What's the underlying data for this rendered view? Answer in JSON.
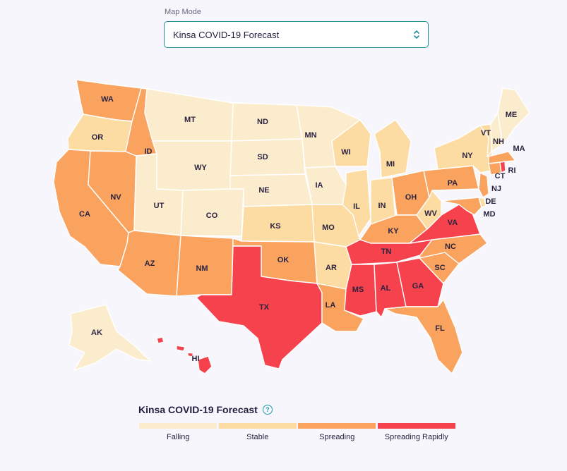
{
  "map_mode": {
    "label": "Map Mode",
    "selected": "Kinsa COVID-19 Forecast"
  },
  "legend": {
    "title": "Kinsa COVID-19 Forecast",
    "help_icon": "question-circle-icon",
    "categories": [
      {
        "key": "falling",
        "label": "Falling",
        "color": "#fcecce"
      },
      {
        "key": "stable",
        "label": "Stable",
        "color": "#fddca4"
      },
      {
        "key": "spreading",
        "label": "Spreading",
        "color": "#f9a35f"
      },
      {
        "key": "spreading_rapidly",
        "label": "Spreading Rapidly",
        "color": "#f5424d"
      }
    ]
  },
  "states": [
    {
      "abbr": "WA",
      "status": "spreading"
    },
    {
      "abbr": "OR",
      "status": "stable"
    },
    {
      "abbr": "CA",
      "status": "spreading"
    },
    {
      "abbr": "NV",
      "status": "spreading"
    },
    {
      "abbr": "ID",
      "status": "spreading"
    },
    {
      "abbr": "MT",
      "status": "falling"
    },
    {
      "abbr": "WY",
      "status": "falling"
    },
    {
      "abbr": "UT",
      "status": "falling"
    },
    {
      "abbr": "CO",
      "status": "falling"
    },
    {
      "abbr": "AZ",
      "status": "spreading"
    },
    {
      "abbr": "NM",
      "status": "spreading"
    },
    {
      "abbr": "ND",
      "status": "falling"
    },
    {
      "abbr": "SD",
      "status": "falling"
    },
    {
      "abbr": "NE",
      "status": "falling"
    },
    {
      "abbr": "KS",
      "status": "stable"
    },
    {
      "abbr": "OK",
      "status": "spreading"
    },
    {
      "abbr": "TX",
      "status": "spreading_rapidly"
    },
    {
      "abbr": "MN",
      "status": "falling"
    },
    {
      "abbr": "IA",
      "status": "falling"
    },
    {
      "abbr": "MO",
      "status": "stable"
    },
    {
      "abbr": "AR",
      "status": "stable"
    },
    {
      "abbr": "LA",
      "status": "spreading"
    },
    {
      "abbr": "WI",
      "status": "stable"
    },
    {
      "abbr": "IL",
      "status": "stable"
    },
    {
      "abbr": "MI",
      "status": "stable"
    },
    {
      "abbr": "IN",
      "status": "stable"
    },
    {
      "abbr": "OH",
      "status": "spreading"
    },
    {
      "abbr": "KY",
      "status": "spreading"
    },
    {
      "abbr": "TN",
      "status": "spreading_rapidly"
    },
    {
      "abbr": "MS",
      "status": "spreading_rapidly"
    },
    {
      "abbr": "AL",
      "status": "spreading_rapidly"
    },
    {
      "abbr": "GA",
      "status": "spreading_rapidly"
    },
    {
      "abbr": "FL",
      "status": "spreading"
    },
    {
      "abbr": "SC",
      "status": "spreading"
    },
    {
      "abbr": "NC",
      "status": "spreading"
    },
    {
      "abbr": "VA",
      "status": "spreading_rapidly"
    },
    {
      "abbr": "WV",
      "status": "stable"
    },
    {
      "abbr": "PA",
      "status": "spreading"
    },
    {
      "abbr": "NY",
      "status": "stable"
    },
    {
      "abbr": "NJ",
      "status": "spreading"
    },
    {
      "abbr": "DE",
      "status": "stable"
    },
    {
      "abbr": "MD",
      "status": "spreading"
    },
    {
      "abbr": "CT",
      "status": "spreading"
    },
    {
      "abbr": "RI",
      "status": "spreading_rapidly"
    },
    {
      "abbr": "MA",
      "status": "spreading"
    },
    {
      "abbr": "VT",
      "status": "stable"
    },
    {
      "abbr": "NH",
      "status": "falling"
    },
    {
      "abbr": "ME",
      "status": "falling"
    },
    {
      "abbr": "AK",
      "status": "falling"
    },
    {
      "abbr": "HI",
      "status": "spreading_rapidly"
    }
  ]
}
